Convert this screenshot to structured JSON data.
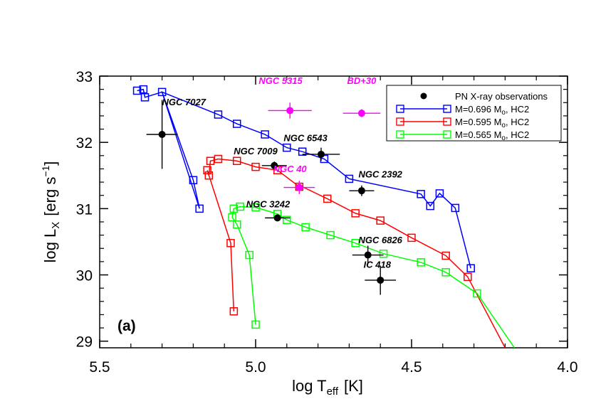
{
  "chart_data": {
    "type": "scatter",
    "panel_label": "(a)",
    "xlabel": {
      "main": "log T",
      "sub": "eff",
      "unit": "[K]"
    },
    "ylabel": {
      "main": "log L",
      "sub": "X",
      "unit_pre": "[erg s",
      "unit_sup": "−1",
      "unit_post": "]"
    },
    "xlim": [
      5.5,
      4.0
    ],
    "ylim": [
      28.9,
      33.0
    ],
    "x_ticks": [
      "5.5",
      "5.0",
      "4.5",
      "4.0"
    ],
    "y_ticks": [
      "29",
      "30",
      "31",
      "32",
      "33"
    ],
    "legend_position": "top-right",
    "colors": {
      "obs": "#000000",
      "magenta": "#ff00ff",
      "blue": "#0000ff",
      "red": "#ff0000",
      "green": "#00ff00"
    },
    "legend": [
      {
        "label": "PN X-ray observations",
        "color": "#000000",
        "kind": "dot"
      },
      {
        "label": "M=0.696 M",
        "suffix": ",   HC2",
        "color": "#0000ff",
        "kind": "track"
      },
      {
        "label": "M=0.595 M",
        "suffix": ",   HC2",
        "color": "#ff0000",
        "kind": "track"
      },
      {
        "label": "M=0.565 M",
        "suffix": ",   HC2",
        "color": "#00ff00",
        "kind": "track"
      }
    ],
    "series": [
      {
        "color": "#0000ff",
        "points": [
          [
            5.38,
            32.78
          ],
          [
            5.36,
            32.8
          ],
          [
            5.355,
            32.68
          ],
          [
            5.3,
            32.76
          ],
          [
            5.2,
            31.43
          ],
          [
            5.18,
            31.0
          ],
          [
            5.3,
            32.76
          ],
          [
            5.12,
            32.42
          ],
          [
            5.06,
            32.28
          ],
          [
            4.97,
            32.12
          ],
          [
            4.9,
            31.92
          ],
          [
            4.85,
            31.86
          ],
          [
            4.78,
            31.75
          ],
          [
            4.7,
            31.45
          ],
          [
            4.47,
            31.22
          ],
          [
            4.44,
            31.04
          ],
          [
            4.41,
            31.23
          ],
          [
            4.36,
            31.01
          ],
          [
            4.31,
            30.1
          ]
        ],
        "markers": [
          [
            5.38,
            32.78
          ],
          [
            5.36,
            32.8
          ],
          [
            5.355,
            32.68
          ],
          [
            5.3,
            32.76
          ],
          [
            5.2,
            31.43
          ],
          [
            5.18,
            31.0
          ],
          [
            5.12,
            32.42
          ],
          [
            5.06,
            32.28
          ],
          [
            4.97,
            32.12
          ],
          [
            4.9,
            31.92
          ],
          [
            4.85,
            31.86
          ],
          [
            4.78,
            31.75
          ],
          [
            4.7,
            31.45
          ],
          [
            4.47,
            31.22
          ],
          [
            4.44,
            31.04
          ],
          [
            4.41,
            31.23
          ],
          [
            4.36,
            31.01
          ],
          [
            4.31,
            30.1
          ]
        ]
      },
      {
        "color": "#ff0000",
        "points": [
          [
            5.07,
            29.45
          ],
          [
            5.08,
            30.48
          ],
          [
            5.155,
            31.58
          ],
          [
            5.15,
            31.5
          ],
          [
            5.145,
            31.72
          ],
          [
            5.135,
            31.73
          ],
          [
            5.12,
            31.75
          ],
          [
            5.06,
            31.72
          ],
          [
            5.0,
            31.63
          ],
          [
            4.93,
            31.58
          ],
          [
            4.86,
            31.33
          ],
          [
            4.85,
            31.33
          ],
          [
            4.77,
            31.15
          ],
          [
            4.68,
            30.93
          ],
          [
            4.6,
            30.82
          ],
          [
            4.5,
            30.56
          ],
          [
            4.39,
            30.29
          ],
          [
            4.32,
            29.97
          ],
          [
            4.2,
            28.9
          ]
        ],
        "markers": [
          [
            5.07,
            29.45
          ],
          [
            5.08,
            30.48
          ],
          [
            5.155,
            31.58
          ],
          [
            5.15,
            31.5
          ],
          [
            5.145,
            31.72
          ],
          [
            5.12,
            31.75
          ],
          [
            5.06,
            31.72
          ],
          [
            5.0,
            31.63
          ],
          [
            4.93,
            31.58
          ],
          [
            4.86,
            31.33
          ],
          [
            4.77,
            31.15
          ],
          [
            4.68,
            30.93
          ],
          [
            4.6,
            30.82
          ],
          [
            4.5,
            30.56
          ],
          [
            4.39,
            30.29
          ],
          [
            4.32,
            29.97
          ]
        ]
      },
      {
        "color": "#00ff00",
        "points": [
          [
            5.0,
            29.25
          ],
          [
            5.02,
            30.3
          ],
          [
            5.06,
            30.76
          ],
          [
            5.075,
            30.87
          ],
          [
            5.07,
            31.0
          ],
          [
            5.05,
            31.03
          ],
          [
            5.0,
            31.02
          ],
          [
            4.93,
            30.92
          ],
          [
            4.9,
            30.83
          ],
          [
            4.84,
            30.72
          ],
          [
            4.76,
            30.6
          ],
          [
            4.68,
            30.48
          ],
          [
            4.59,
            30.32
          ],
          [
            4.47,
            30.19
          ],
          [
            4.39,
            30.04
          ],
          [
            4.29,
            29.72
          ],
          [
            4.17,
            28.9
          ]
        ],
        "markers": [
          [
            5.0,
            29.25
          ],
          [
            5.02,
            30.3
          ],
          [
            5.06,
            30.76
          ],
          [
            5.075,
            30.87
          ],
          [
            5.07,
            31.0
          ],
          [
            5.05,
            31.03
          ],
          [
            5.0,
            31.02
          ],
          [
            4.93,
            30.92
          ],
          [
            4.9,
            30.83
          ],
          [
            4.84,
            30.72
          ],
          [
            4.76,
            30.6
          ],
          [
            4.68,
            30.48
          ],
          [
            4.59,
            30.32
          ],
          [
            4.47,
            30.19
          ],
          [
            4.39,
            30.04
          ],
          [
            4.29,
            29.72
          ]
        ]
      }
    ],
    "observations": [
      {
        "name": "NGC 7027",
        "x": 5.3,
        "y": 32.12,
        "xerr": 0.05,
        "yerr": 0.52,
        "color": "#000000",
        "label_x": 5.23,
        "label_y": 32.56
      },
      {
        "name": "NGC 5315",
        "x": 4.89,
        "y": 32.48,
        "xerr": 0.07,
        "yerr": 0.12,
        "color": "#ff00ff",
        "label_x": 4.92,
        "label_y": 32.88
      },
      {
        "name": "BD+30",
        "x": 4.66,
        "y": 32.44,
        "xerr": 0.06,
        "yerr": 0.06,
        "color": "#ff00ff",
        "label_x": 4.66,
        "label_y": 32.88
      },
      {
        "name": "NGC 6543",
        "x": 4.79,
        "y": 31.82,
        "xerr": 0.06,
        "yerr": 0.1,
        "color": "#000000",
        "label_x": 4.84,
        "label_y": 32.02
      },
      {
        "name": "NGC 7009",
        "x": 4.94,
        "y": 31.65,
        "xerr": 0.04,
        "yerr": 0.06,
        "color": "#000000",
        "label_x": 5.0,
        "label_y": 31.82
      },
      {
        "name": "NGC 40",
        "x": 4.86,
        "y": 31.32,
        "xerr": 0.05,
        "yerr": 0.1,
        "color": "#ff00ff",
        "label_x": 4.89,
        "label_y": 31.55
      },
      {
        "name": "NGC 2392",
        "x": 4.66,
        "y": 31.27,
        "xerr": 0.04,
        "yerr": 0.08,
        "color": "#000000",
        "label_x": 4.6,
        "label_y": 31.47
      },
      {
        "name": "NGC 3242",
        "x": 4.93,
        "y": 30.86,
        "xerr": 0.04,
        "yerr": 0.04,
        "color": "#000000",
        "label_x": 4.96,
        "label_y": 31.02
      },
      {
        "name": "NGC 6826",
        "x": 4.64,
        "y": 30.3,
        "xerr": 0.05,
        "yerr": 0.14,
        "color": "#000000",
        "label_x": 4.6,
        "label_y": 30.48
      },
      {
        "name": "IC 418",
        "x": 4.6,
        "y": 29.92,
        "xerr": 0.05,
        "yerr": 0.22,
        "color": "#000000",
        "label_x": 4.61,
        "label_y": 30.11
      }
    ]
  }
}
